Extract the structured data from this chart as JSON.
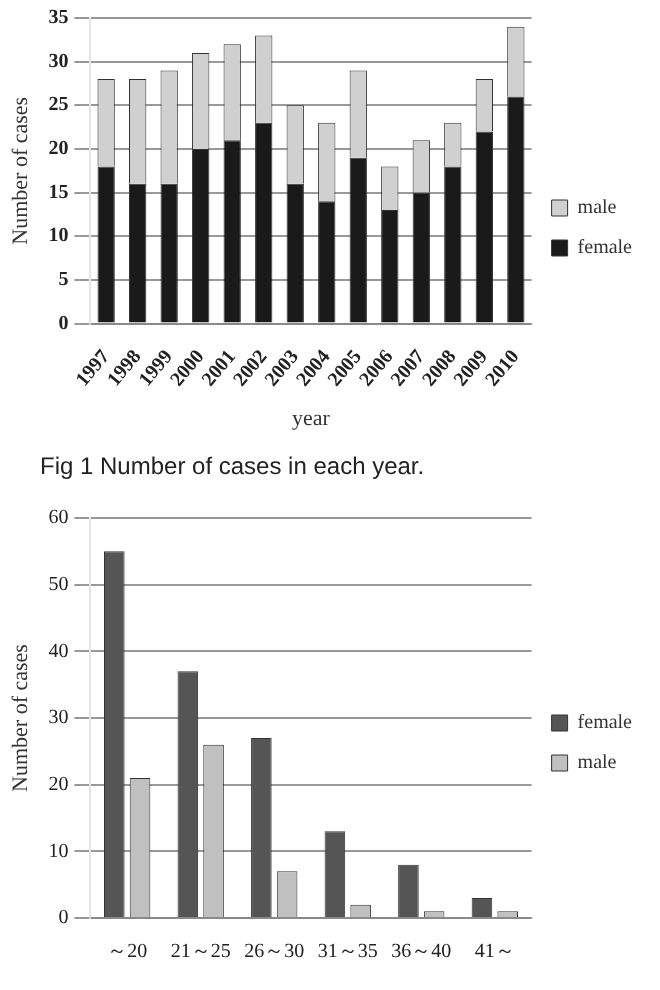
{
  "chart_data": [
    {
      "type": "bar",
      "stacked": true,
      "xlabel": "year",
      "ylabel": "Number of cases",
      "categories": [
        "1997",
        "1998",
        "1999",
        "2000",
        "2001",
        "2002",
        "2003",
        "2004",
        "2005",
        "2006",
        "2007",
        "2008",
        "2009",
        "2010"
      ],
      "series": [
        {
          "name": "female",
          "color": "#1a1a1a",
          "values": [
            18,
            16,
            16,
            20,
            21,
            23,
            16,
            14,
            19,
            13,
            15,
            18,
            22,
            26
          ]
        },
        {
          "name": "male",
          "color": "#d0d0d0",
          "values": [
            10,
            12,
            13,
            11,
            11,
            10,
            9,
            9,
            10,
            5,
            6,
            5,
            6,
            8
          ]
        }
      ],
      "ylim": [
        0,
        35
      ],
      "yticks": [
        0,
        5,
        10,
        15,
        20,
        25,
        30,
        35
      ],
      "grid": "y",
      "legend": "right",
      "annotations": [
        "Fig 1 Number of cases in each year."
      ]
    },
    {
      "type": "bar",
      "ylabel": "Number of cases",
      "categories": [
        "～20",
        "21～25",
        "26～30",
        "31～35",
        "36～40",
        "41～"
      ],
      "series": [
        {
          "name": "female",
          "color": "#555555",
          "values": [
            55,
            37,
            27,
            13,
            8,
            3
          ]
        },
        {
          "name": "male",
          "color": "#c0c0c0",
          "values": [
            21,
            26,
            7,
            2,
            1,
            1
          ]
        }
      ],
      "ylim": [
        0,
        60
      ],
      "yticks": [
        0,
        10,
        20,
        30,
        40,
        50,
        60
      ],
      "grid": "y",
      "legend": "right"
    }
  ]
}
